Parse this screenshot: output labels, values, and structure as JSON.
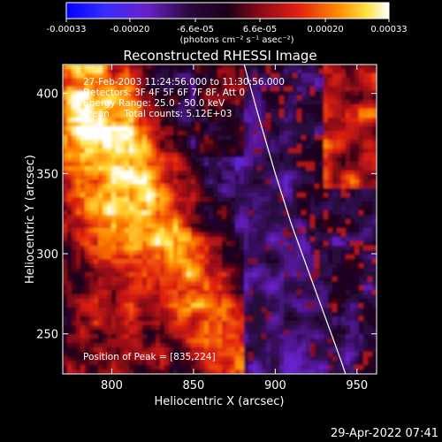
{
  "chart_data": {
    "type": "heatmap",
    "title": "Reconstructed RHESSI Image",
    "xlabel": "Heliocentric X (arcsec)",
    "ylabel": "Heliocentric Y (arcsec)",
    "xlim": [
      770,
      962
    ],
    "ylim": [
      225,
      418
    ],
    "x_ticks": [
      800,
      850,
      900,
      950
    ],
    "x_tick_labels": [
      "800",
      "850",
      "900",
      "950"
    ],
    "y_ticks": [
      250,
      300,
      350,
      400
    ],
    "y_tick_labels": [
      "250",
      "300",
      "350",
      "400"
    ],
    "colorbar": {
      "range": [
        -0.00033,
        0.00033
      ],
      "ticks": [
        -0.00033,
        -0.0002,
        -6.6e-05,
        6.6e-05,
        0.0002,
        0.00033
      ],
      "tick_labels": [
        "-0.00033",
        "-0.00020",
        "-6.6e-05",
        "6.6e-05",
        "0.00020",
        "0.00033"
      ],
      "unit_label": "(photons cm⁻² s⁻¹ asec⁻²)",
      "colors": [
        "#0000ff",
        "#5a1fd0",
        "#2a0a3a",
        "#7a0a2a",
        "#d01a10",
        "#ff8000",
        "#ffd040",
        "#ffffff"
      ]
    },
    "annotations": [
      "27-Feb-2003 11:24:56.000 to 11:30:56.000",
      "Detectors: 3F 4F 5F 6F 7F 8F, Att 0",
      "Energy Range: 25.0 - 50.0 keV",
      "Clean     Total counts: 5.12E+03",
      "Position of Peak = [835,224]"
    ],
    "limb_curve": {
      "points": [
        [
          881,
          418
        ],
        [
          890,
          385
        ],
        [
          900,
          350
        ],
        [
          910,
          318
        ],
        [
          920,
          290
        ],
        [
          930,
          262
        ],
        [
          940,
          234
        ],
        [
          943,
          225
        ]
      ]
    },
    "peak_position": [
      835,
      224
    ],
    "grid": false
  },
  "footer": {
    "timestamp": "29-Apr-2022 07:41"
  }
}
